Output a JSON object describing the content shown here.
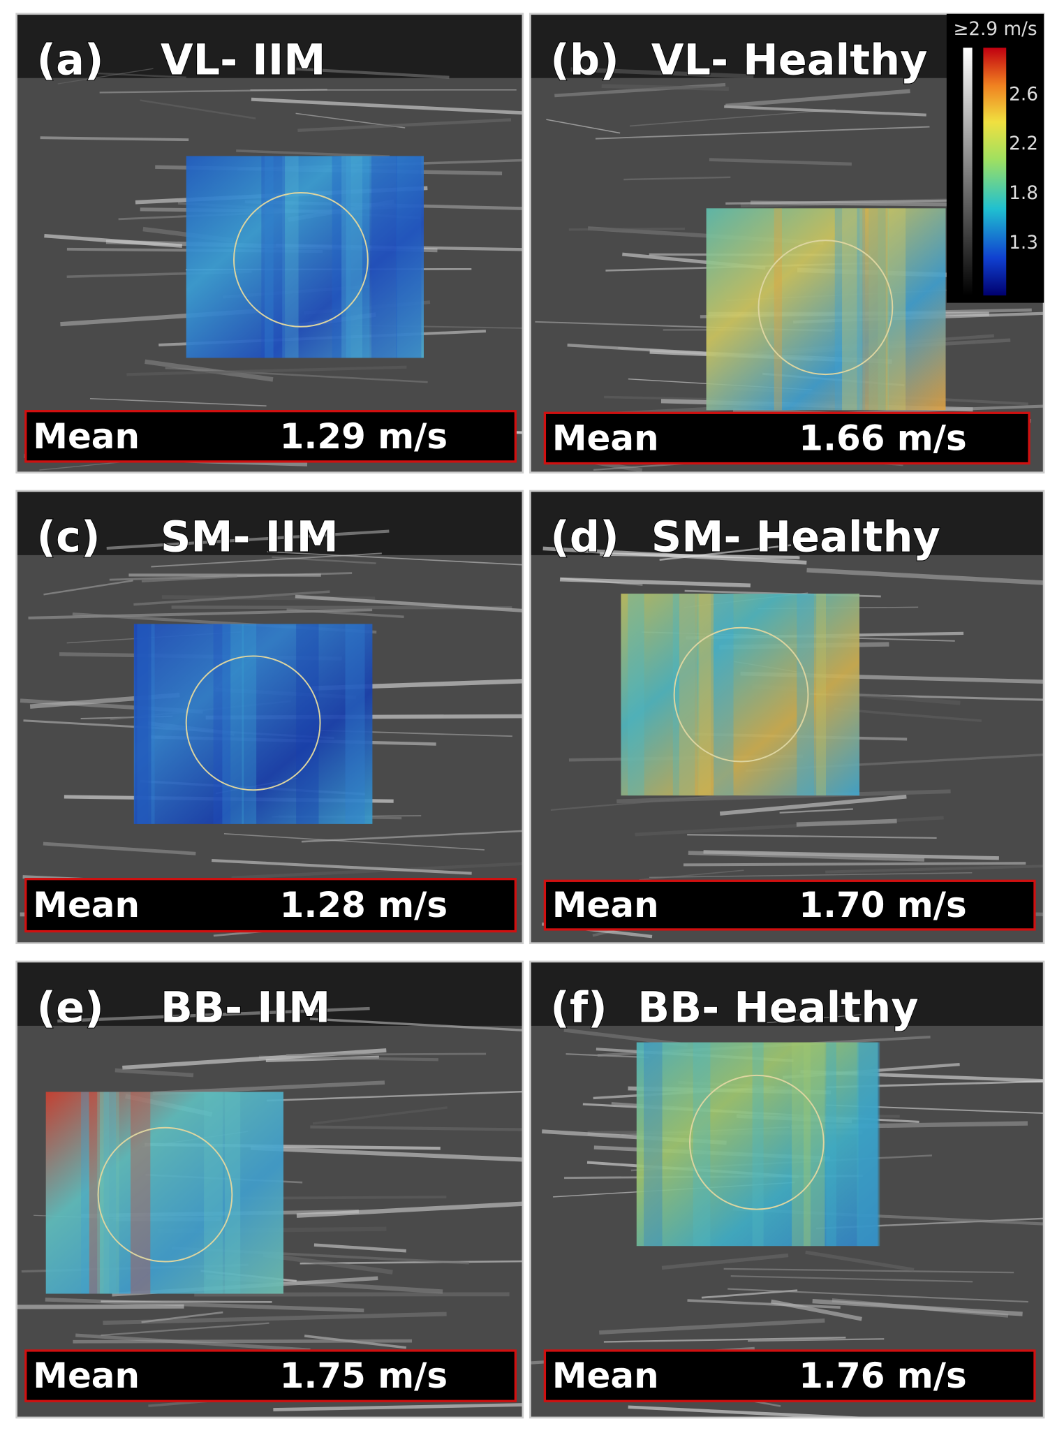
{
  "panels": [
    {
      "label": "(a)",
      "title": "VL- IIM",
      "mean_label": "Mean",
      "mean_value": "1.29 m/s"
    },
    {
      "label": "(b)",
      "title": "VL- Healthy",
      "mean_label": "Mean",
      "mean_value": "1.66 m/s"
    },
    {
      "label": "(c)",
      "title": "SM- IIM",
      "mean_label": "Mean",
      "mean_value": "1.28 m/s"
    },
    {
      "label": "(d)",
      "title": "SM- Healthy",
      "mean_label": "Mean",
      "mean_value": "1.70 m/s"
    },
    {
      "label": "(e)",
      "title": "BB- IIM",
      "mean_label": "Mean",
      "mean_value": "1.75 m/s"
    },
    {
      "label": "(f)",
      "title": "BB- Healthy",
      "mean_label": "Mean",
      "mean_value": "1.76 m/s"
    }
  ],
  "color_scale": {
    "title": "≥2.9 m/s",
    "labels": [
      "2.6",
      "2.2",
      "1.8",
      "1.3"
    ]
  }
}
